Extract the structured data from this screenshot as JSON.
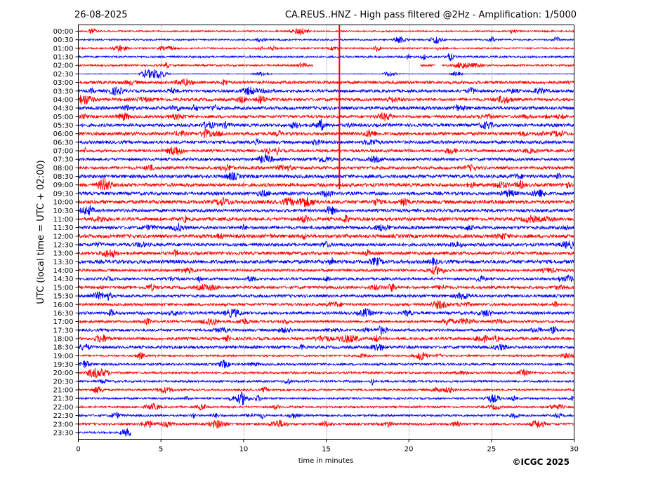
{
  "header": {
    "date": "26-08-2025",
    "title": "CA.REUS..HNZ - High pass filtered @2Hz - Amplification: 1/5000"
  },
  "footer": {
    "copyright": "©ICGC 2025"
  },
  "chart_data": {
    "type": "helicorder",
    "ylabel": "UTC (local time = UTC + 02:00)",
    "xlabel": "time in minutes",
    "xlim": [
      0,
      30
    ],
    "x_ticks": [
      0,
      5,
      10,
      15,
      20,
      25,
      30
    ],
    "grid_x": true,
    "trace_colors": [
      "#ff0000",
      "#0000ff"
    ],
    "rows": [
      "00:00",
      "00:30",
      "01:00",
      "01:30",
      "02:00",
      "02:30",
      "03:00",
      "03:30",
      "04:00",
      "04:30",
      "05:00",
      "05:30",
      "06:00",
      "06:30",
      "07:00",
      "07:30",
      "08:00",
      "08:30",
      "09:00",
      "09:30",
      "10:00",
      "10:30",
      "11:00",
      "11:30",
      "12:00",
      "12:30",
      "13:00",
      "13:30",
      "14:00",
      "14:30",
      "15:00",
      "15:30",
      "16:00",
      "16:30",
      "17:00",
      "17:30",
      "18:00",
      "18:30",
      "19:00",
      "19:30",
      "20:00",
      "20:30",
      "21:00",
      "21:30",
      "22:00",
      "22:30",
      "23:00",
      "23:30"
    ],
    "marker_minute": 15.8,
    "gaps": [
      {
        "row": "02:00",
        "from_minute": 14.2,
        "to_minute": 20.7
      },
      {
        "row": "02:00",
        "from_minute": 21.6,
        "to_minute": 22.0
      }
    ],
    "last_row_end_minute": 3.2
  }
}
